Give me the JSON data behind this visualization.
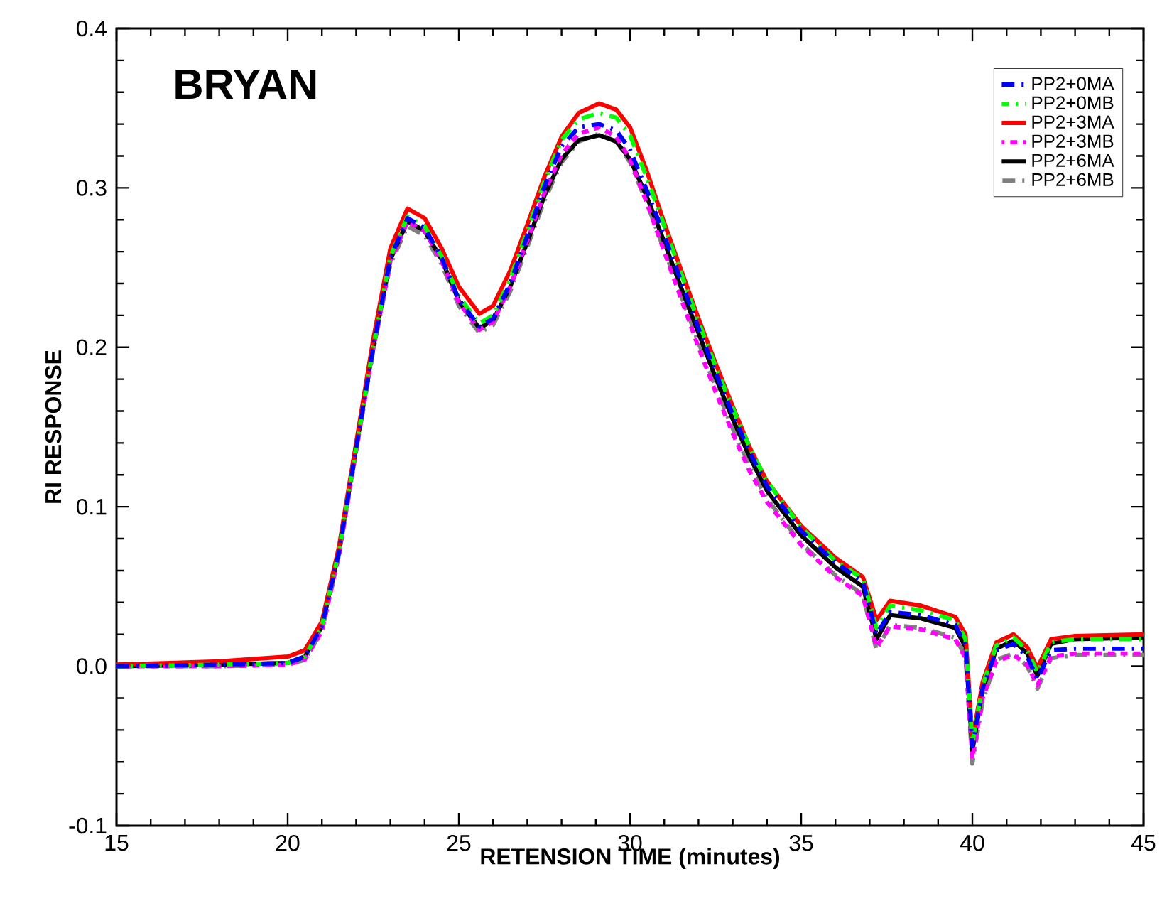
{
  "chart_data": {
    "type": "line",
    "xlabel": "RETENSION TIME (minutes)",
    "ylabel": "RI RESPONSE",
    "annotations": [
      "BRYAN"
    ],
    "x": [
      15,
      18,
      20,
      20.5,
      21,
      21.5,
      22,
      22.5,
      23,
      23.5,
      24,
      24.5,
      25,
      25.6,
      26,
      26.5,
      27,
      27.5,
      28,
      28.5,
      29.1,
      29.6,
      30,
      30.5,
      31,
      31.5,
      32,
      32.5,
      33,
      33.5,
      34,
      35,
      36,
      36.8,
      37.2,
      37.6,
      38.5,
      39.5,
      39.8,
      40.0,
      40.3,
      40.7,
      41.2,
      41.6,
      41.9,
      42.3,
      43,
      45
    ],
    "series": [
      {
        "name": "PP2+0MA",
        "color": "#0000ff",
        "line_style": "dashed",
        "values": [
          0,
          0.001,
          0.002,
          0.006,
          0.025,
          0.072,
          0.137,
          0.2,
          0.256,
          0.281,
          0.275,
          0.256,
          0.23,
          0.213,
          0.218,
          0.24,
          0.27,
          0.301,
          0.326,
          0.338,
          0.34,
          0.336,
          0.324,
          0.298,
          0.27,
          0.241,
          0.212,
          0.184,
          0.158,
          0.134,
          0.113,
          0.085,
          0.065,
          0.053,
          0.02,
          0.034,
          0.032,
          0.026,
          0.013,
          -0.05,
          -0.014,
          0.01,
          0.014,
          0.006,
          -0.008,
          0.01,
          0.011,
          0.011
        ]
      },
      {
        "name": "PP2+0MB",
        "color": "#00ff00",
        "line_style": "dashed",
        "values": [
          0,
          0.001,
          0.002,
          0.006,
          0.025,
          0.072,
          0.137,
          0.2,
          0.257,
          0.282,
          0.276,
          0.257,
          0.232,
          0.215,
          0.22,
          0.243,
          0.273,
          0.304,
          0.33,
          0.343,
          0.347,
          0.344,
          0.333,
          0.306,
          0.276,
          0.246,
          0.216,
          0.188,
          0.162,
          0.137,
          0.116,
          0.087,
          0.066,
          0.055,
          0.024,
          0.038,
          0.035,
          0.029,
          0.017,
          -0.048,
          -0.012,
          0.013,
          0.018,
          0.01,
          -0.004,
          0.015,
          0.017,
          0.017
        ]
      },
      {
        "name": "PP2+3MA",
        "color": "#ff0000",
        "line_style": "solid",
        "values": [
          0.001,
          0.003,
          0.006,
          0.01,
          0.028,
          0.075,
          0.14,
          0.205,
          0.262,
          0.287,
          0.281,
          0.262,
          0.238,
          0.221,
          0.226,
          0.248,
          0.277,
          0.307,
          0.332,
          0.347,
          0.353,
          0.349,
          0.338,
          0.31,
          0.278,
          0.248,
          0.218,
          0.19,
          0.163,
          0.137,
          0.116,
          0.088,
          0.068,
          0.056,
          0.029,
          0.041,
          0.038,
          0.031,
          0.02,
          -0.046,
          -0.01,
          0.015,
          0.02,
          0.012,
          -0.001,
          0.017,
          0.019,
          0.02
        ]
      },
      {
        "name": "PP2+3MB",
        "color": "#ff00ff",
        "line_style": "dotted",
        "values": [
          0,
          0,
          0.001,
          0.004,
          0.022,
          0.07,
          0.135,
          0.199,
          0.254,
          0.279,
          0.273,
          0.254,
          0.228,
          0.211,
          0.216,
          0.238,
          0.267,
          0.297,
          0.321,
          0.334,
          0.338,
          0.332,
          0.318,
          0.29,
          0.26,
          0.23,
          0.2,
          0.172,
          0.146,
          0.122,
          0.103,
          0.076,
          0.056,
          0.044,
          0.012,
          0.025,
          0.023,
          0.017,
          0.005,
          -0.058,
          -0.02,
          0.003,
          0.007,
          0.001,
          -0.012,
          0.006,
          0.008,
          0.008
        ]
      },
      {
        "name": "PP2+6MA",
        "color": "#000000",
        "line_style": "solid",
        "values": [
          0,
          0.001,
          0.002,
          0.006,
          0.025,
          0.072,
          0.137,
          0.2,
          0.255,
          0.279,
          0.273,
          0.255,
          0.229,
          0.212,
          0.217,
          0.238,
          0.266,
          0.295,
          0.318,
          0.33,
          0.333,
          0.329,
          0.318,
          0.294,
          0.266,
          0.237,
          0.209,
          0.181,
          0.155,
          0.131,
          0.11,
          0.082,
          0.062,
          0.05,
          0.017,
          0.032,
          0.03,
          0.024,
          0.012,
          -0.053,
          -0.015,
          0.011,
          0.016,
          0.008,
          -0.006,
          0.014,
          0.017,
          0.018
        ]
      },
      {
        "name": "PP2+6MB",
        "color": "#808080",
        "line_style": "dashed",
        "values": [
          0,
          0,
          0.001,
          0.004,
          0.022,
          0.07,
          0.135,
          0.198,
          0.252,
          0.276,
          0.27,
          0.252,
          0.226,
          0.209,
          0.214,
          0.235,
          0.263,
          0.292,
          0.316,
          0.329,
          0.334,
          0.329,
          0.316,
          0.29,
          0.261,
          0.232,
          0.203,
          0.175,
          0.149,
          0.125,
          0.105,
          0.077,
          0.057,
          0.045,
          0.01,
          0.026,
          0.024,
          0.018,
          0.006,
          -0.061,
          -0.022,
          0.004,
          0.008,
          0.0,
          -0.014,
          0.005,
          0.007,
          0.007
        ]
      }
    ],
    "xlim": [
      15,
      45
    ],
    "xticks": [
      15,
      20,
      25,
      30,
      35,
      40,
      45
    ],
    "ylim": [
      -0.1,
      0.4
    ],
    "yticks": [
      {
        "value": -0.1,
        "label": "-0.1"
      },
      {
        "value": 0,
        "label": "0.0"
      },
      {
        "value": 0.1,
        "label": "0.1"
      },
      {
        "value": 0.2,
        "label": "0.2"
      },
      {
        "value": 0.3,
        "label": "0.3"
      },
      {
        "value": 0.4,
        "label": "0.4"
      }
    ],
    "grid": false,
    "legend": "top right",
    "marker": "none"
  }
}
